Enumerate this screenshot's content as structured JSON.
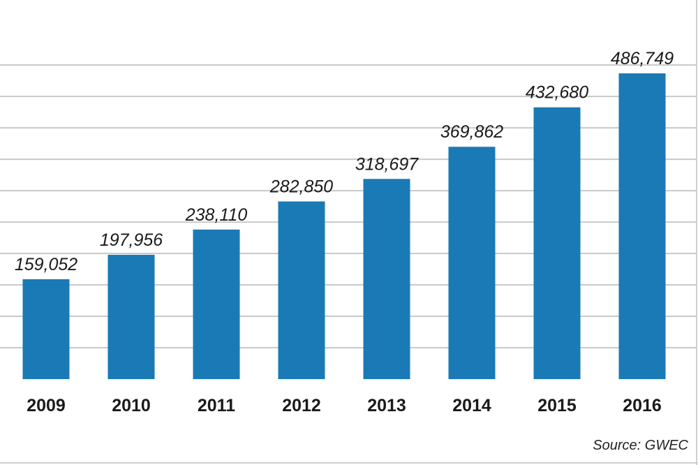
{
  "chart_data": {
    "type": "bar",
    "categories": [
      "2009",
      "2010",
      "2011",
      "2012",
      "2013",
      "2014",
      "2015",
      "2016"
    ],
    "values": [
      159052,
      197956,
      238110,
      282850,
      318697,
      369862,
      432680,
      486749
    ],
    "value_labels": [
      "159,052",
      "197,956",
      "238,110",
      "282,850",
      "318,697",
      "369,862",
      "432,680",
      "486,749"
    ],
    "title": "",
    "xlabel": "",
    "ylabel": "",
    "ylim": [
      0,
      500000
    ],
    "grid": true,
    "bar_color": "#1a7ab5",
    "grid_color": "#c9c9c9"
  },
  "source": "Source: GWEC"
}
